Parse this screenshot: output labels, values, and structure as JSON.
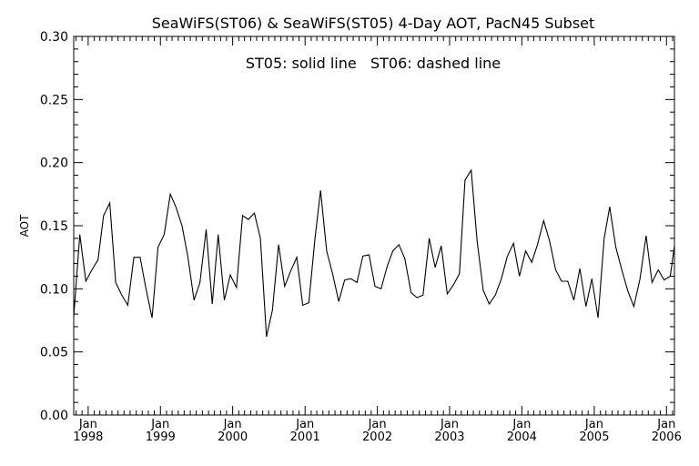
{
  "chart_data": {
    "type": "line",
    "title": "SeaWiFS(ST06) & SeaWiFS(ST05) 4-Day AOT, PacN45 Subset",
    "annotation": "ST05: solid line   ST06: dashed line",
    "ylabel": "AOT",
    "xlabel": "",
    "xlim": [
      "1997-10-20",
      "2006-02-10"
    ],
    "ylim": [
      0.0,
      0.3
    ],
    "y_ticks": [
      "0.00",
      "0.05",
      "0.10",
      "0.15",
      "0.20",
      "0.25",
      "0.30"
    ],
    "x_ticks": [
      {
        "date": "1998-01-01",
        "label_top": "Jan",
        "label_bottom": "1998"
      },
      {
        "date": "1999-01-01",
        "label_top": "Jan",
        "label_bottom": "1999"
      },
      {
        "date": "2000-01-01",
        "label_top": "Jan",
        "label_bottom": "2000"
      },
      {
        "date": "2001-01-01",
        "label_top": "Jan",
        "label_bottom": "2001"
      },
      {
        "date": "2002-01-01",
        "label_top": "Jan",
        "label_bottom": "2002"
      },
      {
        "date": "2003-01-01",
        "label_top": "Jan",
        "label_bottom": "2003"
      },
      {
        "date": "2004-01-01",
        "label_top": "Jan",
        "label_bottom": "2004"
      },
      {
        "date": "2005-01-01",
        "label_top": "Jan",
        "label_bottom": "2005"
      },
      {
        "date": "2006-01-01",
        "label_top": "Jan",
        "label_bottom": "2006"
      }
    ],
    "grid": false,
    "series": [
      {
        "style": "solid",
        "color": "#000000",
        "x": [
          "1997-10-20",
          "1997-11-20",
          "1997-12-20",
          "1998-01-20",
          "1998-02-20",
          "1998-03-20",
          "1998-04-20",
          "1998-05-20",
          "1998-06-20",
          "1998-07-20",
          "1998-08-20",
          "1998-09-20",
          "1998-10-20",
          "1998-11-20",
          "1998-12-20",
          "1999-01-20",
          "1999-02-20",
          "1999-03-20",
          "1999-04-20",
          "1999-05-20",
          "1999-06-20",
          "1999-07-20",
          "1999-08-20",
          "1999-09-20",
          "1999-10-20",
          "1999-11-20",
          "1999-12-20",
          "2000-01-20",
          "2000-02-20",
          "2000-03-20",
          "2000-04-20",
          "2000-05-20",
          "2000-06-20",
          "2000-07-20",
          "2000-08-20",
          "2000-09-20",
          "2000-10-20",
          "2000-11-20",
          "2000-12-20",
          "2001-01-20",
          "2001-02-20",
          "2001-03-20",
          "2001-04-20",
          "2001-05-20",
          "2001-06-20",
          "2001-07-20",
          "2001-08-20",
          "2001-09-20",
          "2001-10-20",
          "2001-11-20",
          "2001-12-20",
          "2002-01-20",
          "2002-02-20",
          "2002-03-20",
          "2002-04-20",
          "2002-05-20",
          "2002-06-20",
          "2002-07-20",
          "2002-08-20",
          "2002-09-20",
          "2002-10-20",
          "2002-11-20",
          "2002-12-20",
          "2003-01-20",
          "2003-02-20",
          "2003-03-20",
          "2003-04-20",
          "2003-05-20",
          "2003-06-20",
          "2003-07-20",
          "2003-08-20",
          "2003-09-20",
          "2003-10-20",
          "2003-11-20",
          "2003-12-20",
          "2004-01-20",
          "2004-02-20",
          "2004-03-20",
          "2004-04-20",
          "2004-05-20",
          "2004-06-20",
          "2004-07-20",
          "2004-08-20",
          "2004-09-20",
          "2004-10-20",
          "2004-11-20",
          "2004-12-20",
          "2005-01-20",
          "2005-02-20",
          "2005-03-20",
          "2005-04-20",
          "2005-05-20",
          "2005-06-20",
          "2005-07-20",
          "2005-08-20",
          "2005-09-20",
          "2005-10-20",
          "2005-11-20",
          "2005-12-20",
          "2006-01-20",
          "2006-02-10"
        ],
        "y": [
          0.078,
          0.143,
          0.106,
          0.115,
          0.123,
          0.158,
          0.168,
          0.105,
          0.095,
          0.087,
          0.125,
          0.125,
          0.1,
          0.077,
          0.133,
          0.143,
          0.175,
          0.165,
          0.15,
          0.125,
          0.091,
          0.105,
          0.147,
          0.088,
          0.143,
          0.091,
          0.111,
          0.101,
          0.158,
          0.155,
          0.16,
          0.14,
          0.062,
          0.083,
          0.135,
          0.102,
          0.114,
          0.125,
          0.087,
          0.089,
          0.14,
          0.178,
          0.13,
          0.112,
          0.09,
          0.107,
          0.108,
          0.105,
          0.126,
          0.127,
          0.102,
          0.1,
          0.118,
          0.13,
          0.135,
          0.124,
          0.097,
          0.093,
          0.095,
          0.14,
          0.117,
          0.134,
          0.096,
          0.103,
          0.112,
          0.186,
          0.194,
          0.138,
          0.099,
          0.088,
          0.095,
          0.108,
          0.126,
          0.136,
          0.11,
          0.13,
          0.121,
          0.135,
          0.154,
          0.138,
          0.115,
          0.106,
          0.106,
          0.091,
          0.116,
          0.086,
          0.108,
          0.077,
          0.14,
          0.165,
          0.133,
          0.115,
          0.098,
          0.086,
          0.108,
          0.142,
          0.105,
          0.115,
          0.107,
          0.11,
          0.134
        ]
      }
    ]
  }
}
